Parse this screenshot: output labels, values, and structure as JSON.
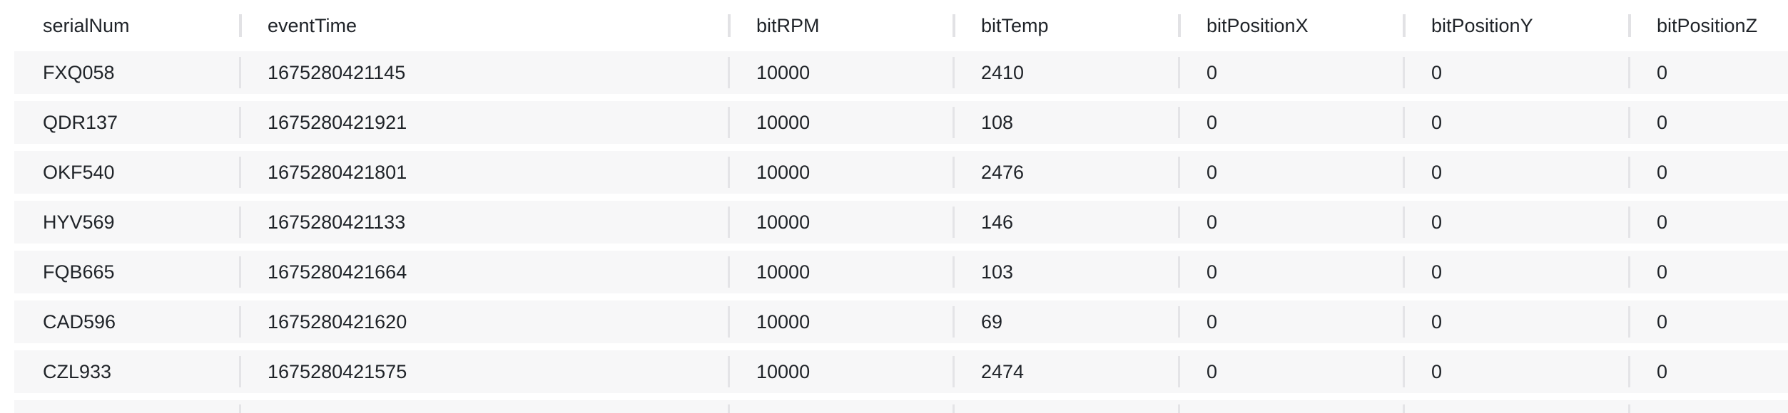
{
  "table": {
    "columns": [
      "serialNum",
      "eventTime",
      "bitRPM",
      "bitTemp",
      "bitPositionX",
      "bitPositionY",
      "bitPositionZ"
    ],
    "rows": [
      [
        "FXQ058",
        "1675280421145",
        "10000",
        "2410",
        "0",
        "0",
        "0"
      ],
      [
        "QDR137",
        "1675280421921",
        "10000",
        "108",
        "0",
        "0",
        "0"
      ],
      [
        "OKF540",
        "1675280421801",
        "10000",
        "2476",
        "0",
        "0",
        "0"
      ],
      [
        "HYV569",
        "1675280421133",
        "10000",
        "146",
        "0",
        "0",
        "0"
      ],
      [
        "FQB665",
        "1675280421664",
        "10000",
        "103",
        "0",
        "0",
        "0"
      ],
      [
        "CAD596",
        "1675280421620",
        "10000",
        "69",
        "0",
        "0",
        "0"
      ],
      [
        "CZL933",
        "1675280421575",
        "10000",
        "2474",
        "0",
        "0",
        "0"
      ]
    ]
  }
}
